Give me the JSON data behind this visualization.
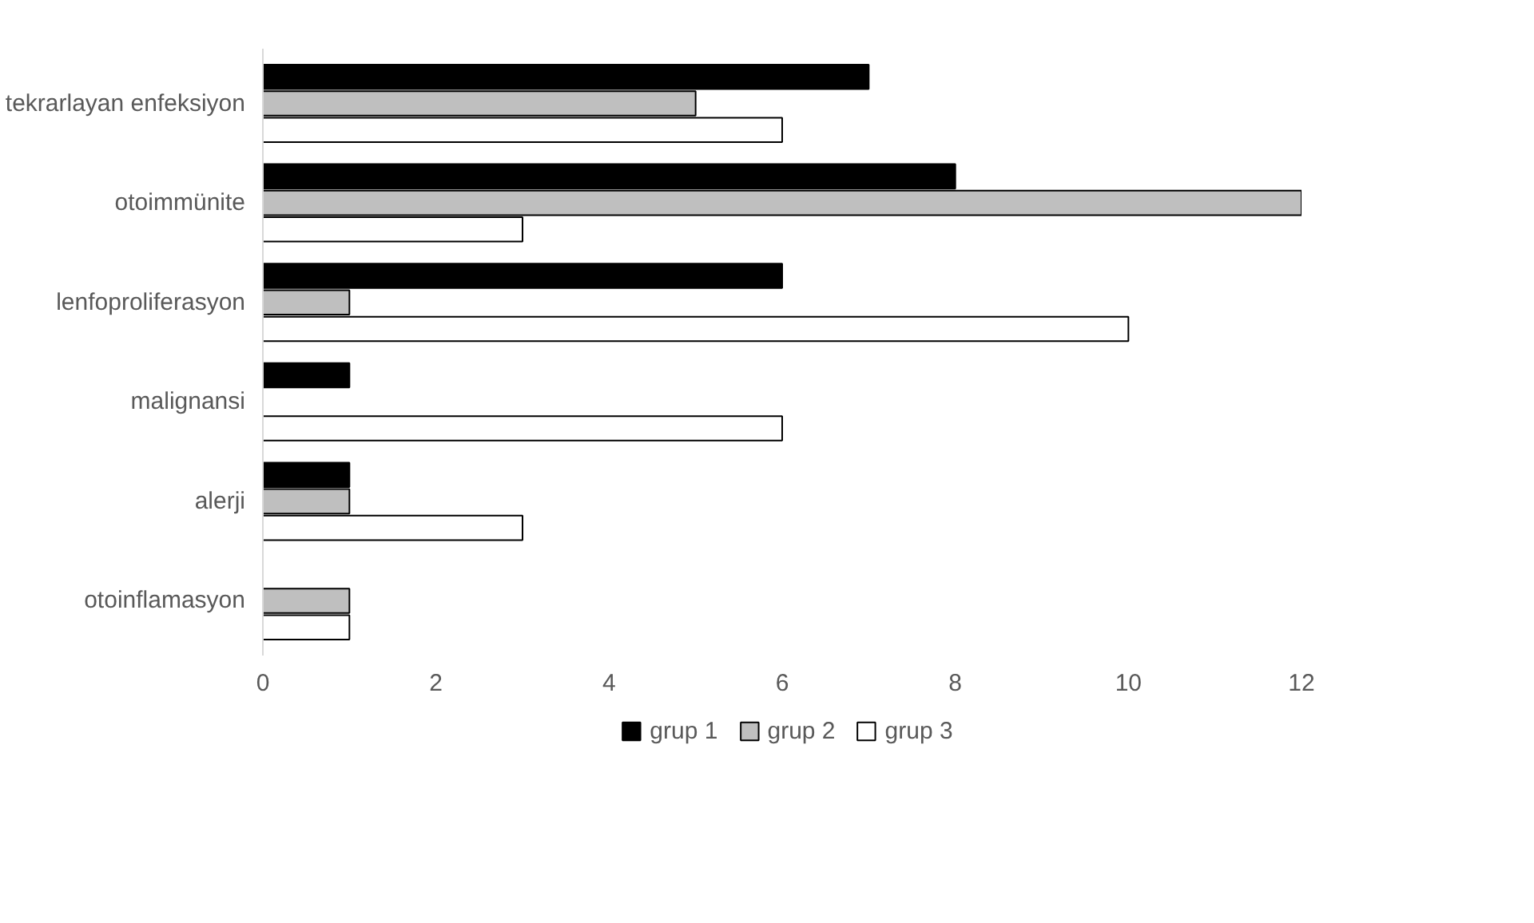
{
  "chart_data": {
    "type": "bar",
    "orientation": "horizontal",
    "categories": [
      "tekrarlayan enfeksiyon",
      "otoimmünite",
      "lenfoproliferasyon",
      "malignansi",
      "alerji",
      "otoinflamasyon"
    ],
    "series": [
      {
        "name": "grup 1",
        "color": "#000000",
        "values": [
          7,
          8,
          6,
          1,
          1,
          null
        ]
      },
      {
        "name": "grup 2",
        "color": "#bfbfbf",
        "values": [
          5,
          12,
          1,
          null,
          1,
          1
        ]
      },
      {
        "name": "grup 3",
        "color": "#ffffff",
        "values": [
          6,
          3,
          10,
          6,
          3,
          1
        ]
      }
    ],
    "xlim": [
      0,
      12
    ],
    "xticks": [
      0,
      2,
      4,
      6,
      8,
      10,
      12
    ],
    "grid": false,
    "legend": "bottom"
  }
}
